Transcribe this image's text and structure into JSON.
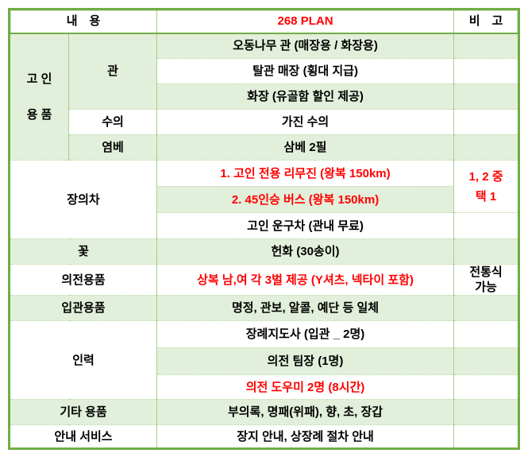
{
  "colors": {
    "fill_green": "#e2efda",
    "grid_green": "#a9d08e",
    "border_green": "#70ad47",
    "accent_red": "#ff0000",
    "text_black": "#000000"
  },
  "header": {
    "content": "내　용",
    "plan": "268 PLAN",
    "note": "비　고"
  },
  "deceased": {
    "label_line1": "고 인",
    "label_line2": "용 품",
    "coffin": {
      "label": "관",
      "options": [
        "오동나무 관 (매장용 / 화장용)",
        "탈관 매장 (횡대 지급)",
        "화장 (유골함 할인 제공)"
      ]
    },
    "shroud": {
      "label": "수의",
      "value": "가진 수의"
    },
    "hemp": {
      "label": "염베",
      "value": "삼베 2필"
    }
  },
  "hearse": {
    "label": "장의차",
    "options": [
      "1. 고인 전용 리무진 (왕복 150km)",
      "2. 45인승 버스 (왕복 150km)",
      "고인 운구차 (관내 무료)"
    ],
    "note_line1": "1, 2 중",
    "note_line2": "택 1"
  },
  "flower": {
    "label": "꽃",
    "value": "헌화 (30송이)"
  },
  "ceremony": {
    "label": "의전용품",
    "value": "상복 남,여 각 3벌 제공 (Y셔츠, 넥타이 포함)",
    "note_line1": "전통식",
    "note_line2": "가능"
  },
  "encoffining": {
    "label": "입관용품",
    "value": "명정, 관보, 알콜, 예단 등 일체"
  },
  "staff": {
    "label": "인력",
    "options": [
      "장례지도사 (입관 _ 2명)",
      "의전 팀장 (1명)",
      "의전 도우미 2명 (8시간)"
    ]
  },
  "etc_items": {
    "label": "기타 용품",
    "value": "부의록, 명패(위패), 향, 초, 장갑"
  },
  "guide": {
    "label": "안내 서비스",
    "value": "장지 안내, 상장례 절차 안내"
  }
}
